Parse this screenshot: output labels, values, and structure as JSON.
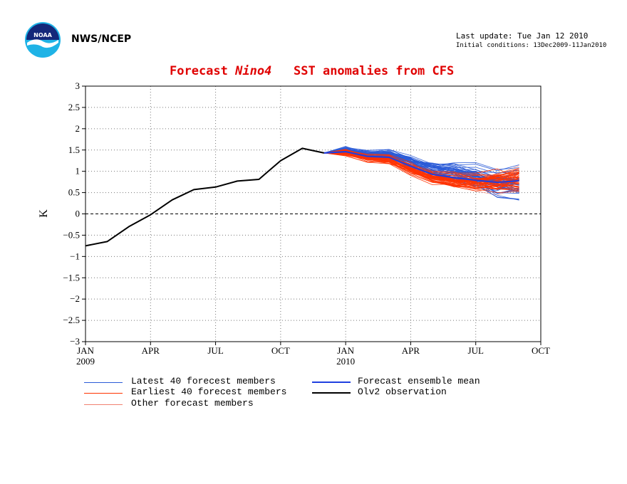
{
  "header": {
    "agency": "NWS/NCEP",
    "last_update": "Last update: Tue Jan 12 2010",
    "initial_conditions": "Initial conditions: 13Dec2009-11Jan2010",
    "logo_name": "noaa-logo",
    "logo_text": "NOAA"
  },
  "colors": {
    "latest": "#2a5bd7",
    "earliest": "#ff3300",
    "other": "#f08070",
    "mean": "#1f3fe0",
    "observation": "#000000",
    "title": "#e00000"
  },
  "chart_data": {
    "type": "line",
    "title_parts": [
      "Forecast ",
      "Nino4",
      "   SST anomalies from CFS"
    ],
    "ylabel": "K",
    "xlabel": "",
    "ylim": [
      -3,
      3
    ],
    "yticks": [
      "3",
      "2.5",
      "2",
      "1.5",
      "1",
      "0.5",
      "0",
      "-0.5",
      "-1",
      "-1.5",
      "-2",
      "-2.5",
      "-3"
    ],
    "xlim": [
      "2009-01",
      "2010-10"
    ],
    "xticks": [
      {
        "label": "JAN",
        "sublabel": "2009",
        "month": "2009-01"
      },
      {
        "label": "APR",
        "sublabel": "",
        "month": "2009-04"
      },
      {
        "label": "JUL",
        "sublabel": "",
        "month": "2009-07"
      },
      {
        "label": "OCT",
        "sublabel": "",
        "month": "2009-10"
      },
      {
        "label": "JAN",
        "sublabel": "2010",
        "month": "2010-01"
      },
      {
        "label": "APR",
        "sublabel": "",
        "month": "2010-04"
      },
      {
        "label": "JUL",
        "sublabel": "",
        "month": "2010-07"
      },
      {
        "label": "OCT",
        "sublabel": "",
        "month": "2010-10"
      }
    ],
    "grid": true,
    "zero_line": true,
    "series": [
      {
        "name": "Olv2 observation",
        "x": [
          "2009-01",
          "2009-02",
          "2009-03",
          "2009-04",
          "2009-05",
          "2009-06",
          "2009-07",
          "2009-08",
          "2009-09",
          "2009-10",
          "2009-11",
          "2009-12"
        ],
        "values": [
          -0.75,
          -0.65,
          -0.3,
          -0.02,
          0.33,
          0.57,
          0.63,
          0.77,
          0.81,
          1.25,
          1.54,
          1.43
        ]
      },
      {
        "name": "Forecast ensemble mean",
        "x": [
          "2009-12",
          "2010-01",
          "2010-02",
          "2010-03",
          "2010-04",
          "2010-05",
          "2010-06",
          "2010-07",
          "2010-08",
          "2010-09"
        ],
        "values": [
          1.43,
          1.46,
          1.35,
          1.33,
          1.12,
          0.93,
          0.85,
          0.79,
          0.74,
          0.78
        ]
      }
    ],
    "ensemble": {
      "x": [
        "2009-12",
        "2010-01",
        "2010-02",
        "2010-03",
        "2010-04",
        "2010-05",
        "2010-06",
        "2010-07",
        "2010-08",
        "2010-09"
      ],
      "groups": [
        {
          "name": "Latest 40 forecest members",
          "count": 40,
          "start": 1.43,
          "mean": [
            1.43,
            1.5,
            1.4,
            1.4,
            1.22,
            1.05,
            0.98,
            0.88,
            0.72,
            0.72
          ],
          "spread": [
            0.0,
            0.08,
            0.12,
            0.15,
            0.22,
            0.28,
            0.32,
            0.4,
            0.5,
            0.6
          ]
        },
        {
          "name": "Earliest 40 forecest members",
          "count": 40,
          "start": 1.43,
          "mean": [
            1.43,
            1.45,
            1.32,
            1.28,
            1.05,
            0.86,
            0.79,
            0.76,
            0.76,
            0.82
          ],
          "spread": [
            0.0,
            0.08,
            0.12,
            0.15,
            0.2,
            0.24,
            0.27,
            0.32,
            0.4,
            0.48
          ]
        },
        {
          "name": "Other forecast members",
          "count": 20,
          "start": 1.43,
          "mean": [
            1.43,
            1.44,
            1.32,
            1.3,
            1.08,
            0.88,
            0.8,
            0.76,
            0.74,
            0.78
          ],
          "spread": [
            0.0,
            0.08,
            0.12,
            0.15,
            0.2,
            0.24,
            0.28,
            0.32,
            0.4,
            0.48
          ]
        }
      ]
    },
    "legend": {
      "placement": "bottom",
      "items": [
        {
          "label": "Latest 40 forecest members",
          "style": "latest"
        },
        {
          "label": "Forecast ensemble mean",
          "style": "mean"
        },
        {
          "label": "Earliest 40 forecest members",
          "style": "earliest"
        },
        {
          "label": "Olv2 observation",
          "style": "observation"
        },
        {
          "label": "Other forecast members",
          "style": "other"
        }
      ]
    }
  }
}
